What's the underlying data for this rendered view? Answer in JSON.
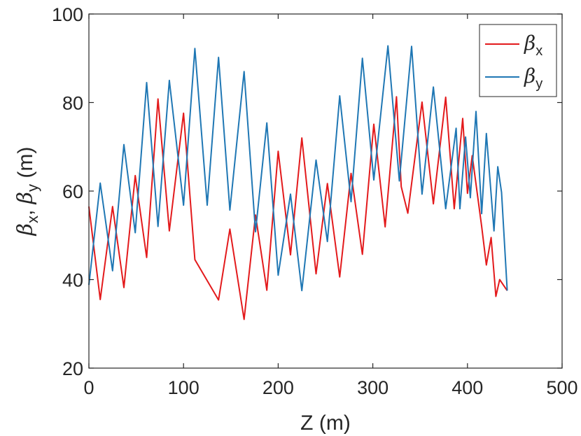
{
  "chart_data": {
    "type": "line",
    "title": "",
    "xlabel": "Z (m)",
    "ylabel": {
      "parts": [
        "β",
        "x",
        ", ",
        "β",
        "y",
        " (m)"
      ]
    },
    "xlim": [
      0,
      500
    ],
    "ylim": [
      20,
      100
    ],
    "xticks": [
      0,
      100,
      200,
      300,
      400,
      500
    ],
    "yticks": [
      20,
      40,
      60,
      80,
      100
    ],
    "xtick_labels": [
      "0",
      "100",
      "200",
      "300",
      "400",
      "500"
    ],
    "ytick_labels": [
      "20",
      "40",
      "60",
      "80",
      "100"
    ],
    "grid": false,
    "legend_position": "top-right",
    "series": [
      {
        "name": "βx",
        "legend_symbol": "β",
        "legend_subscript": "x",
        "color": "#e31a1c",
        "x": [
          0,
          12,
          25,
          37,
          49,
          61,
          73,
          85,
          100,
          112,
          137,
          149,
          164,
          176,
          188,
          200,
          213,
          225,
          240,
          252,
          265,
          277,
          289,
          301,
          313,
          325,
          330,
          337,
          352,
          364,
          377,
          386,
          395,
          400,
          405,
          415,
          420,
          425,
          430,
          434,
          442
        ],
        "y": [
          56.5,
          35.5,
          56.5,
          38.2,
          63.5,
          45.0,
          80.8,
          51.0,
          77.6,
          44.5,
          35.4,
          51.4,
          31.0,
          54.6,
          37.6,
          69.0,
          45.6,
          72.0,
          41.3,
          61.7,
          40.6,
          64.0,
          45.7,
          75.1,
          51.9,
          81.3,
          61.0,
          55.0,
          80.1,
          57.1,
          81.2,
          56.0,
          76.4,
          59.5,
          68.0,
          52.0,
          43.3,
          49.5,
          36.2,
          40.0,
          37.5
        ]
      },
      {
        "name": "βy",
        "legend_symbol": "β",
        "legend_subscript": "y",
        "color": "#1f77b4",
        "x": [
          0,
          12,
          25,
          37,
          49,
          61,
          73,
          85,
          100,
          112,
          125,
          137,
          149,
          164,
          176,
          188,
          200,
          213,
          225,
          240,
          252,
          265,
          277,
          289,
          301,
          316,
          328,
          341,
          352,
          364,
          377,
          388,
          392,
          398,
          403,
          409,
          415,
          420,
          428,
          432,
          436,
          442
        ],
        "y": [
          38.8,
          61.8,
          42.0,
          70.5,
          50.6,
          84.5,
          52.0,
          85.0,
          56.8,
          92.2,
          56.8,
          90.2,
          55.7,
          87.0,
          50.8,
          75.4,
          41.0,
          59.3,
          37.5,
          67.0,
          48.6,
          81.5,
          57.6,
          90.0,
          62.5,
          92.8,
          62.3,
          92.7,
          59.3,
          83.5,
          56.0,
          74.2,
          56.0,
          72.2,
          58.5,
          78.0,
          54.9,
          73.0,
          51.0,
          65.5,
          59.7,
          37.5
        ]
      }
    ]
  }
}
